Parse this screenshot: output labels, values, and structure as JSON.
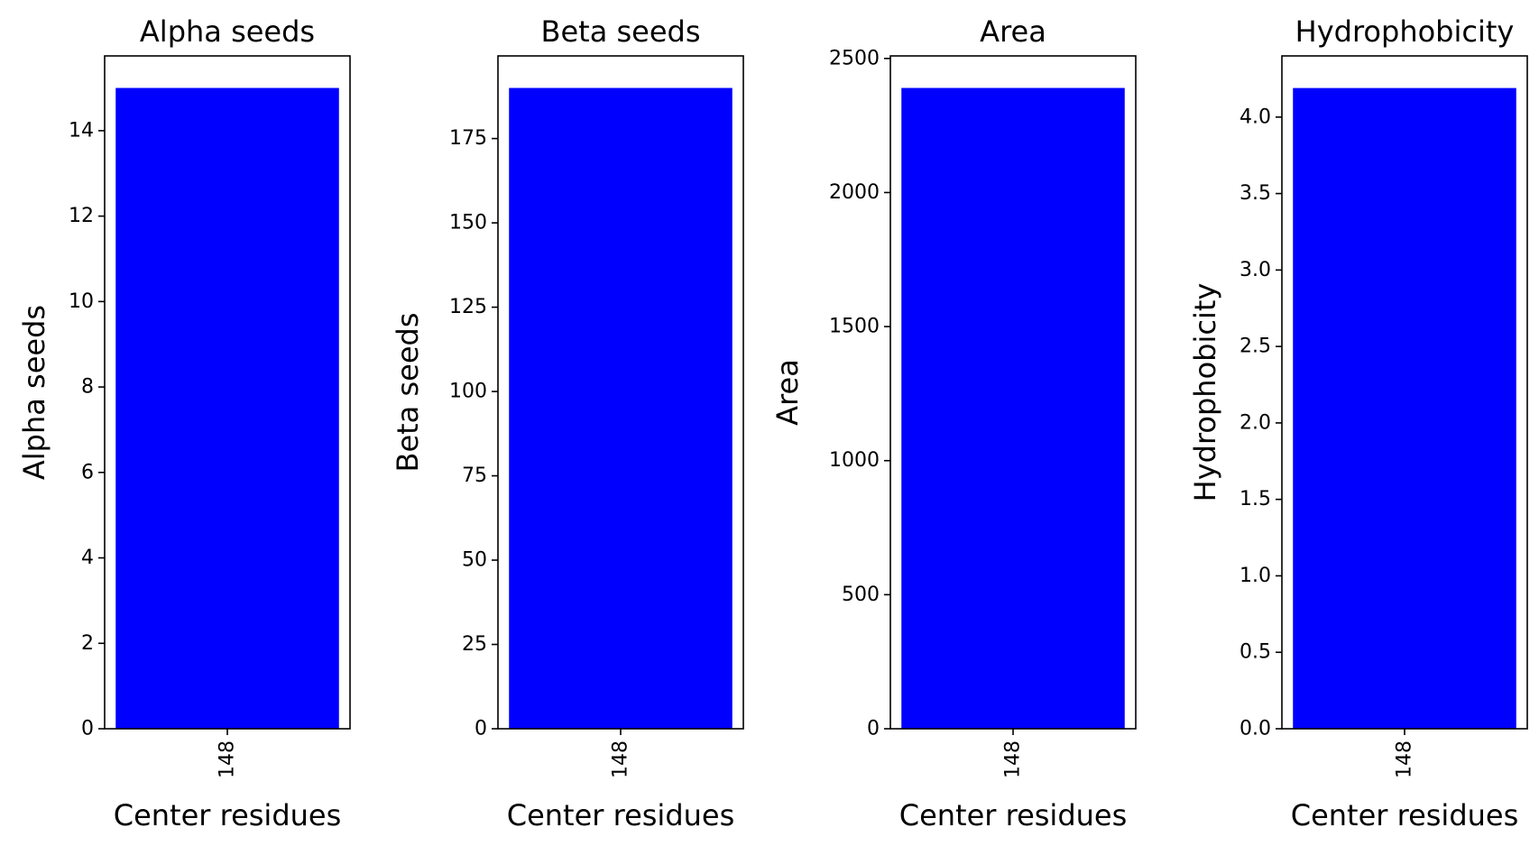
{
  "figure": {
    "background": "#ffffff",
    "bar_color": "#0000ff"
  },
  "chart_data": [
    {
      "type": "bar",
      "title": "Alpha seeds",
      "xlabel": "Center residues",
      "ylabel": "Alpha seeds",
      "categories": [
        "148"
      ],
      "values": [
        15
      ],
      "ylim": [
        0,
        15.75
      ],
      "yticks": [
        0,
        2,
        4,
        6,
        8,
        10,
        12,
        14
      ],
      "ytick_labels": [
        "0",
        "2",
        "4",
        "6",
        "8",
        "10",
        "12",
        "14"
      ],
      "grid": false,
      "color": "#0000ff"
    },
    {
      "type": "bar",
      "title": "Beta seeds",
      "xlabel": "Center residues",
      "ylabel": "Beta seeds",
      "categories": [
        "148"
      ],
      "values": [
        190
      ],
      "ylim": [
        0,
        199.5
      ],
      "yticks": [
        0,
        25,
        50,
        75,
        100,
        125,
        150,
        175
      ],
      "ytick_labels": [
        "0",
        "25",
        "50",
        "75",
        "100",
        "125",
        "150",
        "175"
      ],
      "grid": false,
      "color": "#0000ff"
    },
    {
      "type": "bar",
      "title": "Area",
      "xlabel": "Center residues",
      "ylabel": "Area",
      "categories": [
        "148"
      ],
      "values": [
        2390
      ],
      "ylim": [
        0,
        2509.5
      ],
      "yticks": [
        0,
        500,
        1000,
        1500,
        2000,
        2500
      ],
      "ytick_labels": [
        "0",
        "500",
        "1000",
        "1500",
        "2000",
        "2500"
      ],
      "grid": false,
      "color": "#0000ff"
    },
    {
      "type": "bar",
      "title": "Hydrophobicity",
      "xlabel": "Center residues",
      "ylabel": "Hydrophobicity",
      "categories": [
        "148"
      ],
      "values": [
        4.19
      ],
      "ylim": [
        0,
        4.4
      ],
      "yticks": [
        0.0,
        0.5,
        1.0,
        1.5,
        2.0,
        2.5,
        3.0,
        3.5,
        4.0
      ],
      "ytick_labels": [
        "0.0",
        "0.5",
        "1.0",
        "1.5",
        "2.0",
        "2.5",
        "3.0",
        "3.5",
        "4.0"
      ],
      "grid": false,
      "color": "#0000ff"
    }
  ]
}
